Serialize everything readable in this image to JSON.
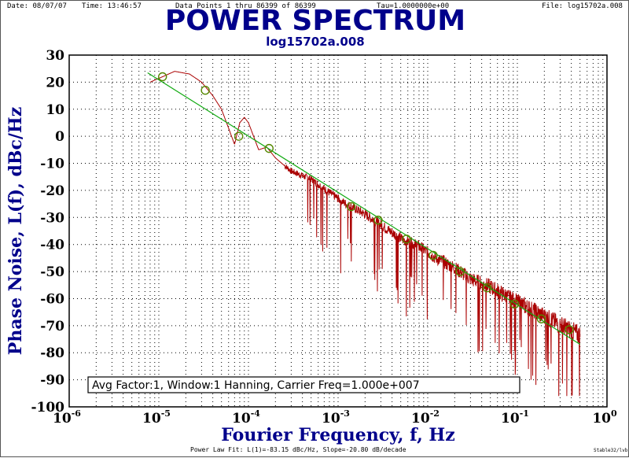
{
  "header": {
    "date": "Date: 08/07/07",
    "time": "Time: 13:46:57",
    "points": "Data Points 1 thru 86399 of 86399",
    "tau": "Tau=1.0000000e+00",
    "file": "File: log15702a.008"
  },
  "footer": {
    "fit": "Power Law Fit: L(1)=-83.15 dBc/Hz, Slope=-20.80 dB/decade",
    "version": "Stable32/lvb"
  },
  "colors": {
    "title": "#00008b",
    "spectrum": "#aa0000",
    "fit": "#11aa11",
    "markers": "#558800"
  },
  "chart_data": {
    "type": "line",
    "title": "POWER SPECTRUM",
    "subtitle": "log15702a.008",
    "xlabel": "Fourier Frequency, f, Hz",
    "ylabel": "Phase Noise, L(f), dBc/Hz",
    "xscale": "log",
    "xlim": [
      1e-06,
      1
    ],
    "ylim": [
      -100,
      30
    ],
    "grid": true,
    "x_ticks": [
      {
        "value": 1e-06,
        "base": "10",
        "exp": "-6"
      },
      {
        "value": 1e-05,
        "base": "10",
        "exp": "-5"
      },
      {
        "value": 0.0001,
        "base": "10",
        "exp": "-4"
      },
      {
        "value": 0.001,
        "base": "10",
        "exp": "-3"
      },
      {
        "value": 0.01,
        "base": "10",
        "exp": "-2"
      },
      {
        "value": 0.1,
        "base": "10",
        "exp": "-1"
      },
      {
        "value": 1,
        "base": "10",
        "exp": "0"
      }
    ],
    "y_ticks": [
      30,
      20,
      10,
      0,
      -10,
      -20,
      -30,
      -40,
      -50,
      -60,
      -70,
      -80,
      -90,
      -100
    ],
    "annotation": "Avg Factor:1, Window:1 Hanning, Carrier Freq=1.000e+007",
    "series": [
      {
        "kind": "spectrum",
        "envelope": [
          [
            8e-06,
            20
          ],
          [
            1.1e-05,
            22
          ],
          [
            1.5e-05,
            24
          ],
          [
            2.2e-05,
            23
          ],
          [
            3e-05,
            20
          ],
          [
            4e-05,
            15
          ],
          [
            5e-05,
            10
          ],
          [
            6e-05,
            3
          ],
          [
            7e-05,
            -3
          ],
          [
            8e-05,
            5
          ],
          [
            9e-05,
            7
          ],
          [
            0.0001,
            5
          ],
          [
            0.00013,
            -5
          ],
          [
            0.00016,
            -4
          ],
          [
            0.0002,
            -8
          ],
          [
            0.0003,
            -13
          ],
          [
            0.0005,
            -16
          ],
          [
            0.0008,
            -21
          ],
          [
            0.0012,
            -25
          ],
          [
            0.002,
            -29
          ],
          [
            0.003,
            -33
          ],
          [
            0.005,
            -38
          ],
          [
            0.008,
            -41
          ],
          [
            0.012,
            -45
          ],
          [
            0.02,
            -49
          ],
          [
            0.03,
            -53
          ],
          [
            0.05,
            -56
          ],
          [
            0.08,
            -60
          ],
          [
            0.12,
            -63
          ],
          [
            0.2,
            -67
          ],
          [
            0.3,
            -70
          ],
          [
            0.5,
            -74
          ]
        ]
      },
      {
        "kind": "fit",
        "name": "Power Law Fit",
        "L1": -83.15,
        "slope": -20.8,
        "x_range": [
          7.5e-06,
          0.5
        ]
      },
      {
        "kind": "markers",
        "points": [
          [
            1.1e-05,
            22
          ],
          [
            3.3e-05,
            17
          ],
          [
            7.8e-05,
            0
          ],
          [
            0.00017,
            -4.5
          ],
          [
            0.0014,
            -26
          ],
          [
            0.0028,
            -31
          ],
          [
            0.0058,
            -38
          ],
          [
            0.0115,
            -44
          ],
          [
            0.023,
            -50
          ],
          [
            0.046,
            -56
          ],
          [
            0.093,
            -62
          ],
          [
            0.185,
            -67.5
          ],
          [
            0.38,
            -71.5
          ]
        ]
      }
    ]
  }
}
